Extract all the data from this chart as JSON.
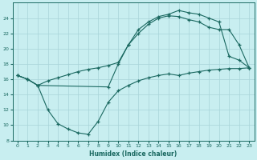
{
  "xlabel": "Humidex (Indice chaleur)",
  "bg_color": "#c8eef0",
  "grid_color": "#a8d4d8",
  "line_color": "#1a6860",
  "xlim": [
    -0.5,
    23.5
  ],
  "ylim": [
    8,
    26
  ],
  "xticks": [
    0,
    1,
    2,
    3,
    4,
    5,
    6,
    7,
    8,
    9,
    10,
    11,
    12,
    13,
    14,
    15,
    16,
    17,
    18,
    19,
    20,
    21,
    22,
    23
  ],
  "yticks": [
    8,
    10,
    12,
    14,
    16,
    18,
    20,
    22,
    24
  ],
  "line1_x": [
    0,
    1,
    2,
    3,
    4,
    5,
    6,
    7,
    8,
    9,
    10,
    11,
    12,
    13,
    14,
    15,
    16,
    17,
    18,
    19,
    20,
    21,
    22,
    23
  ],
  "line1_y": [
    16.5,
    16.0,
    15.2,
    15.8,
    16.2,
    16.6,
    17.0,
    17.3,
    17.5,
    17.8,
    18.2,
    20.5,
    22.5,
    23.5,
    24.2,
    24.5,
    25.0,
    24.7,
    24.5,
    24.0,
    23.5,
    19.0,
    18.5,
    17.5
  ],
  "line2_x": [
    0,
    1,
    2,
    9,
    10,
    11,
    12,
    13,
    14,
    15,
    16,
    17,
    18,
    19,
    20,
    21,
    22,
    23
  ],
  "line2_y": [
    16.5,
    16.0,
    15.2,
    15.0,
    18.0,
    20.5,
    22.0,
    23.2,
    24.0,
    24.3,
    24.2,
    23.8,
    23.5,
    22.8,
    22.5,
    22.5,
    20.5,
    17.5
  ],
  "line3_x": [
    0,
    1,
    2,
    3,
    4,
    5,
    6,
    7,
    8,
    9,
    10,
    11,
    12,
    13,
    14,
    15,
    16,
    17,
    18,
    19,
    20,
    21,
    22,
    23
  ],
  "line3_y": [
    16.5,
    16.0,
    15.2,
    12.0,
    10.2,
    9.5,
    9.0,
    8.8,
    10.5,
    13.0,
    14.5,
    15.2,
    15.8,
    16.2,
    16.5,
    16.7,
    16.5,
    16.8,
    17.0,
    17.2,
    17.3,
    17.4,
    17.4,
    17.5
  ]
}
